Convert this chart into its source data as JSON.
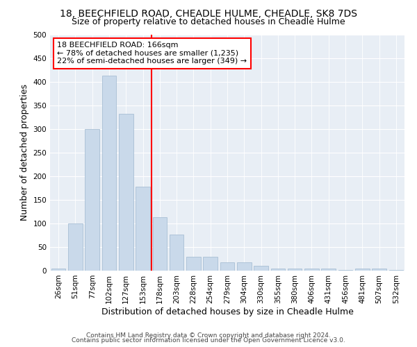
{
  "title1": "18, BEECHFIELD ROAD, CHEADLE HULME, CHEADLE, SK8 7DS",
  "title2": "Size of property relative to detached houses in Cheadle Hulme",
  "xlabel": "Distribution of detached houses by size in Cheadle Hulme",
  "ylabel": "Number of detached properties",
  "bar_values": [
    5,
    100,
    300,
    413,
    333,
    178,
    113,
    76,
    30,
    30,
    17,
    17,
    10,
    5,
    5,
    5,
    5,
    1,
    5,
    5,
    2
  ],
  "bar_labels": [
    "26sqm",
    "51sqm",
    "77sqm",
    "102sqm",
    "127sqm",
    "153sqm",
    "178sqm",
    "203sqm",
    "228sqm",
    "254sqm",
    "279sqm",
    "304sqm",
    "330sqm",
    "355sqm",
    "380sqm",
    "406sqm",
    "431sqm",
    "456sqm",
    "481sqm",
    "507sqm",
    "532sqm"
  ],
  "bar_color": "#c9d9ea",
  "bar_edge_color": "#a8bfd4",
  "vline_color": "red",
  "vline_x_index": 5.5,
  "annotation_text": "18 BEECHFIELD ROAD: 166sqm\n← 78% of detached houses are smaller (1,235)\n22% of semi-detached houses are larger (349) →",
  "annotation_box_facecolor": "white",
  "annotation_box_edgecolor": "red",
  "ylim": [
    0,
    500
  ],
  "yticks": [
    0,
    50,
    100,
    150,
    200,
    250,
    300,
    350,
    400,
    450,
    500
  ],
  "background_color": "#e8eef5",
  "grid_color": "white",
  "footer1": "Contains HM Land Registry data © Crown copyright and database right 2024.",
  "footer2": "Contains public sector information licensed under the Open Government Licence v3.0.",
  "title1_fontsize": 10,
  "title2_fontsize": 9,
  "xlabel_fontsize": 9,
  "ylabel_fontsize": 9,
  "tick_fontsize": 7.5,
  "annotation_fontsize": 8,
  "footer_fontsize": 6.5
}
